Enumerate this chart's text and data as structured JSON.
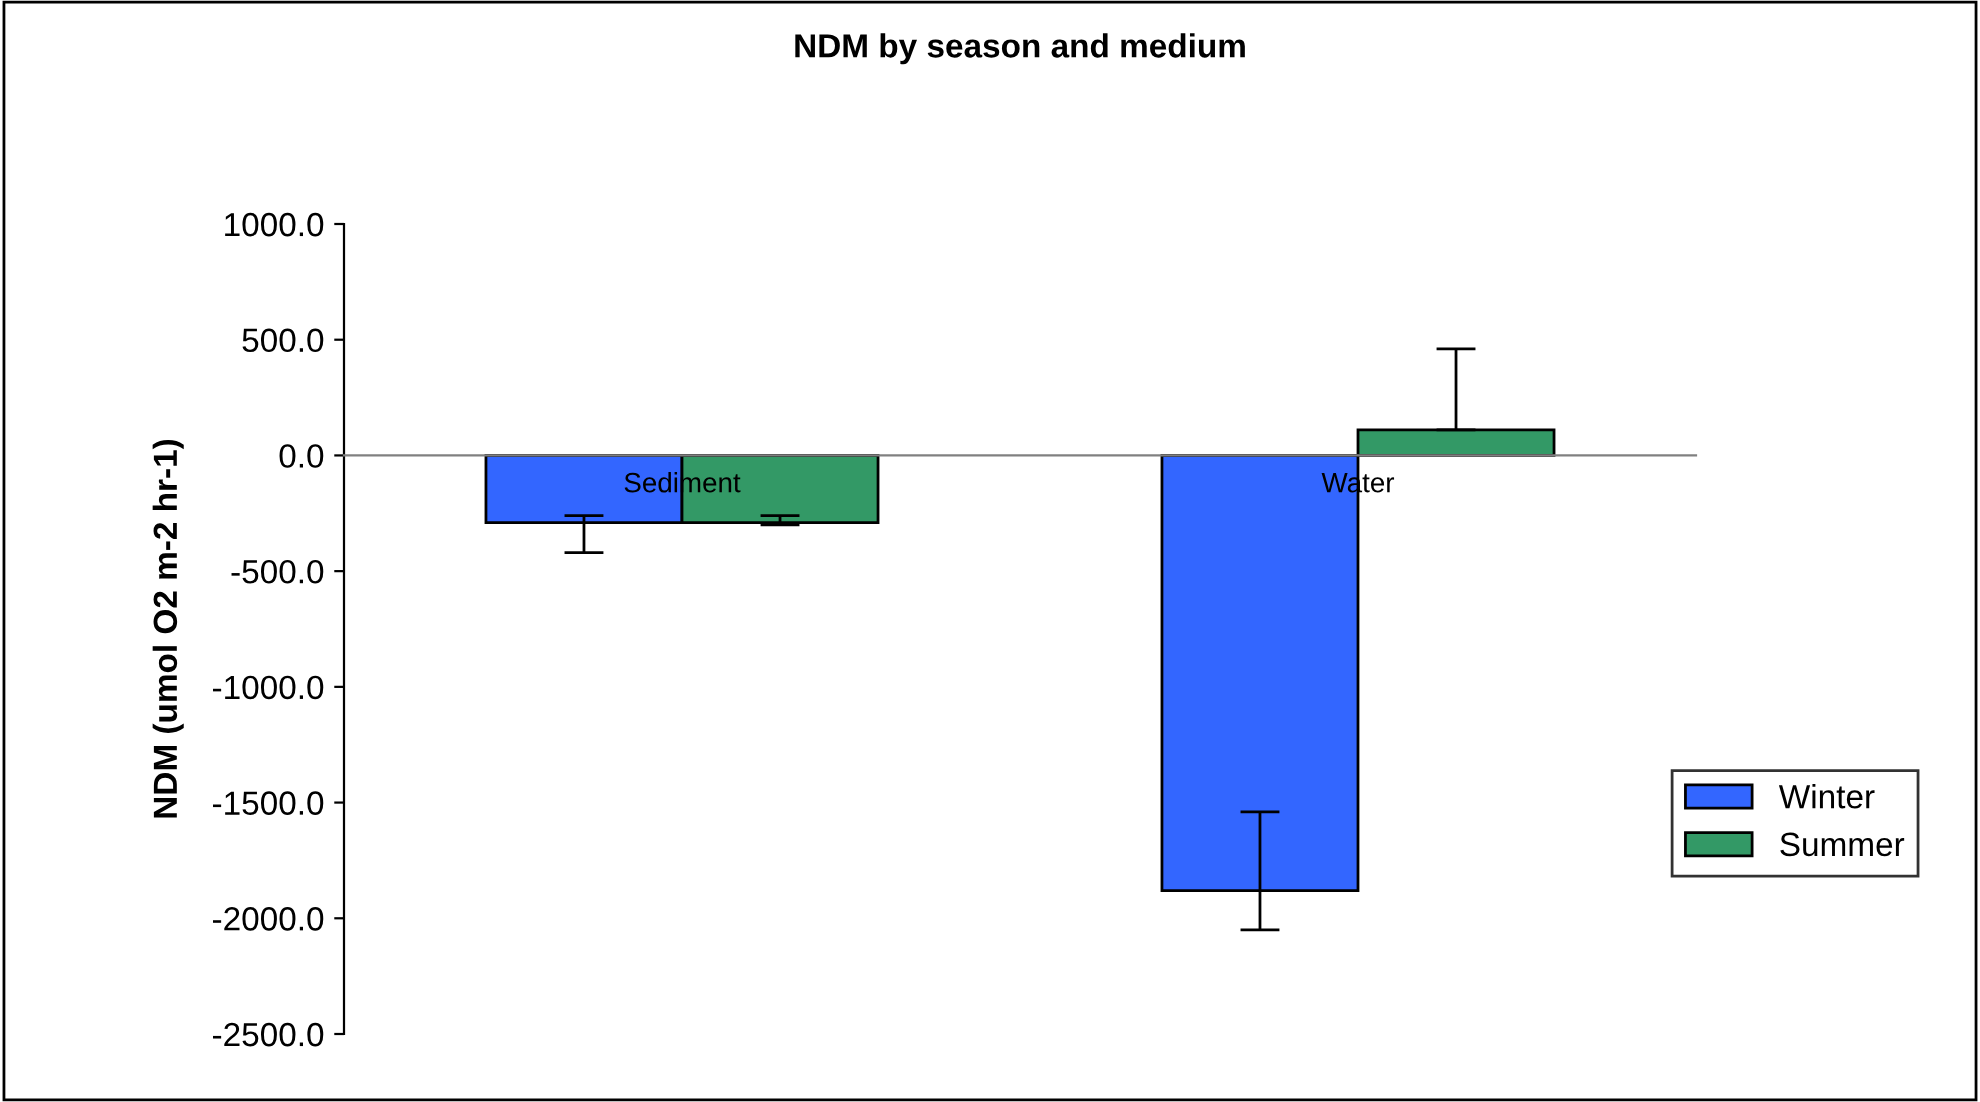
{
  "chart_data": {
    "type": "bar",
    "title": "NDM by season and medium",
    "ylabel": "NDM (umol O2 m-2 hr-1)",
    "categories": [
      "Sediment",
      "Water"
    ],
    "series": [
      {
        "name": "Winter",
        "color": "#3366ff",
        "values": [
          -290,
          -1880
        ],
        "errors": [
          [
            -420,
            -260
          ],
          [
            -2050,
            -1540
          ]
        ]
      },
      {
        "name": "Summer",
        "color": "#339966",
        "values": [
          -290,
          110
        ],
        "errors": [
          [
            -300,
            -260
          ],
          [
            110,
            460
          ]
        ]
      }
    ],
    "ylim": [
      -2500,
      1000
    ],
    "yticks": [
      {
        "value": 1000,
        "label": "1000.0"
      },
      {
        "value": 500,
        "label": "500.0"
      },
      {
        "value": 0,
        "label": "0.0"
      },
      {
        "value": -500,
        "label": "-500.0"
      },
      {
        "value": -1000,
        "label": "-1000.0"
      },
      {
        "value": -1500,
        "label": "-1500.0"
      },
      {
        "value": -2000,
        "label": "-2000.0"
      },
      {
        "value": -2500,
        "label": "-2500.0"
      }
    ],
    "grid": false,
    "legend": "right"
  }
}
